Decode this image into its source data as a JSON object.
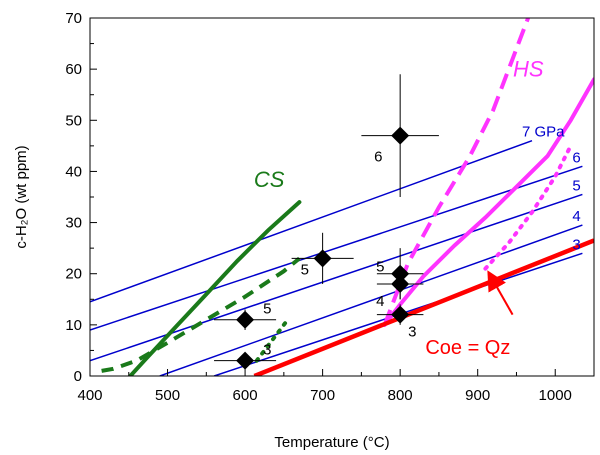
{
  "chart_data": {
    "type": "scatter",
    "xlabel": "Temperature (°C)",
    "ylabel": "c-H₂O (wt ppm)",
    "xlim": [
      400,
      1050
    ],
    "ylim": [
      0,
      70
    ],
    "xticks": [
      "400",
      "500",
      "600",
      "700",
      "800",
      "900",
      "1000"
    ],
    "yticks": [
      "0",
      "10",
      "20",
      "30",
      "40",
      "50",
      "60",
      "70"
    ],
    "grid": false,
    "pressure_lines": {
      "color": "#0000cc",
      "lines": [
        {
          "label": "3",
          "x": [
            560,
            1035
          ],
          "y": [
            0,
            24
          ]
        },
        {
          "label": "4",
          "x": [
            490,
            1035
          ],
          "y": [
            0,
            29.5
          ]
        },
        {
          "label": "5",
          "x": [
            400,
            1035
          ],
          "y": [
            3,
            35.5
          ]
        },
        {
          "label": "6",
          "x": [
            400,
            1035
          ],
          "y": [
            9,
            41
          ]
        },
        {
          "label": "7 GPa",
          "x": [
            400,
            970
          ],
          "y": [
            14.5,
            46
          ]
        }
      ]
    },
    "boundary_lines": [
      {
        "name": "Coe = Qz",
        "color": "#ff0000",
        "x": [
          612,
          1050
        ],
        "y": [
          0,
          26.5
        ],
        "label_x": 955,
        "label_y": 5.5,
        "arrow_from": [
          945,
          12
        ],
        "arrow_to": [
          915,
          20
        ]
      },
      {
        "name": "CS",
        "color": "#1a7a1a",
        "x": [
          452,
          470,
          510,
          550,
          590,
          630,
          670
        ],
        "y": [
          0,
          3,
          9.5,
          16,
          22.5,
          28.5,
          34
        ],
        "label_x": 650,
        "label_y": 37
      }
    ],
    "cs_dashed": {
      "color": "#1a7a1a",
      "x": [
        415,
        430,
        460,
        500,
        550,
        600,
        650,
        670
      ],
      "y": [
        1,
        1.4,
        3,
        6.5,
        11,
        15.5,
        20.5,
        23
      ]
    },
    "cs_dotted": {
      "color": "#1a7a1a",
      "x": [
        615,
        625,
        635,
        645,
        655
      ],
      "y": [
        3,
        5,
        7,
        9,
        11
      ]
    },
    "hs_solid": {
      "name": "HS",
      "color": "#ff33ff",
      "x": [
        780,
        800,
        830,
        870,
        910,
        950,
        990,
        1020,
        1050
      ],
      "y": [
        10,
        14,
        19.5,
        25.5,
        31,
        37,
        43,
        50,
        58
      ],
      "label_x": 1010,
      "label_y": 59
    },
    "hs_dashed": {
      "color": "#ff33ff",
      "x": [
        780,
        810,
        850,
        890,
        920,
        945,
        965
      ],
      "y": [
        10,
        22,
        33,
        43,
        52,
        62,
        70
      ]
    },
    "hs_dotted": {
      "color": "#ff33ff",
      "x": [
        910,
        940,
        970,
        1000,
        1020
      ],
      "y": [
        21,
        26,
        32,
        39,
        45
      ]
    },
    "points": [
      {
        "x": 600,
        "y": 3,
        "xerr": 40,
        "yerr": 1.5,
        "label": "3",
        "label_dx": 18,
        "label_dy": -6
      },
      {
        "x": 600,
        "y": 11,
        "xerr": 40,
        "yerr": 2,
        "label": "5",
        "label_dx": 18,
        "label_dy": -6
      },
      {
        "x": 700,
        "y": 23,
        "xerr": 40,
        "yerr": 5,
        "label": "5",
        "label_dx": -22,
        "label_dy": 16
      },
      {
        "x": 800,
        "y": 47,
        "xerr": 50,
        "yerr": 12,
        "label": "6",
        "label_dx": -26,
        "label_dy": 26
      },
      {
        "x": 800,
        "y": 20,
        "xerr": 30,
        "yerr": 5,
        "label": "5",
        "label_dx": -24,
        "label_dy": -2
      },
      {
        "x": 800,
        "y": 18,
        "xerr": 30,
        "yerr": 3,
        "label": "4",
        "label_dx": -24,
        "label_dy": 22
      },
      {
        "x": 800,
        "y": 12,
        "xerr": 30,
        "yerr": 2,
        "label": "3",
        "label_dx": 8,
        "label_dy": 22
      }
    ]
  }
}
